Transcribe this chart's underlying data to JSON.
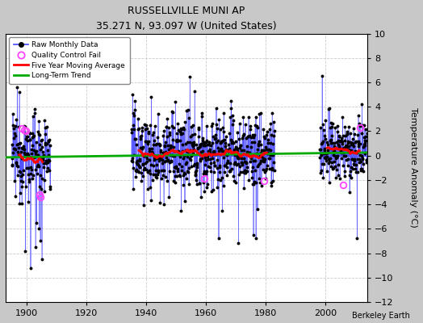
{
  "title": "RUSSELLVILLE MUNI AP",
  "subtitle": "35.271 N, 93.097 W (United States)",
  "ylabel": "Temperature Anomaly (°C)",
  "credit": "Berkeley Earth",
  "ylim": [
    -12,
    10
  ],
  "yticks": [
    -12,
    -10,
    -8,
    -6,
    -4,
    -2,
    0,
    2,
    4,
    6,
    8,
    10
  ],
  "xlim": [
    1893,
    2014
  ],
  "xticks": [
    1900,
    1920,
    1940,
    1960,
    1980,
    2000
  ],
  "bg_color": "#c8c8c8",
  "plot_bg_color": "#ffffff",
  "grid_color": "#cccccc",
  "raw_line_color": "#4444ff",
  "raw_dot_color": "black",
  "qc_color": "#ff44ff",
  "ma_color": "red",
  "trend_color": "#00aa00",
  "legend_loc": "upper left",
  "seg1_start": 1895,
  "seg1_end": 1907,
  "seg2_start": 1935,
  "seg2_end": 1982,
  "seg3_start": 1998,
  "seg3_end": 2013,
  "trend_x": [
    1893,
    2014
  ],
  "trend_y": [
    -0.15,
    0.25
  ]
}
